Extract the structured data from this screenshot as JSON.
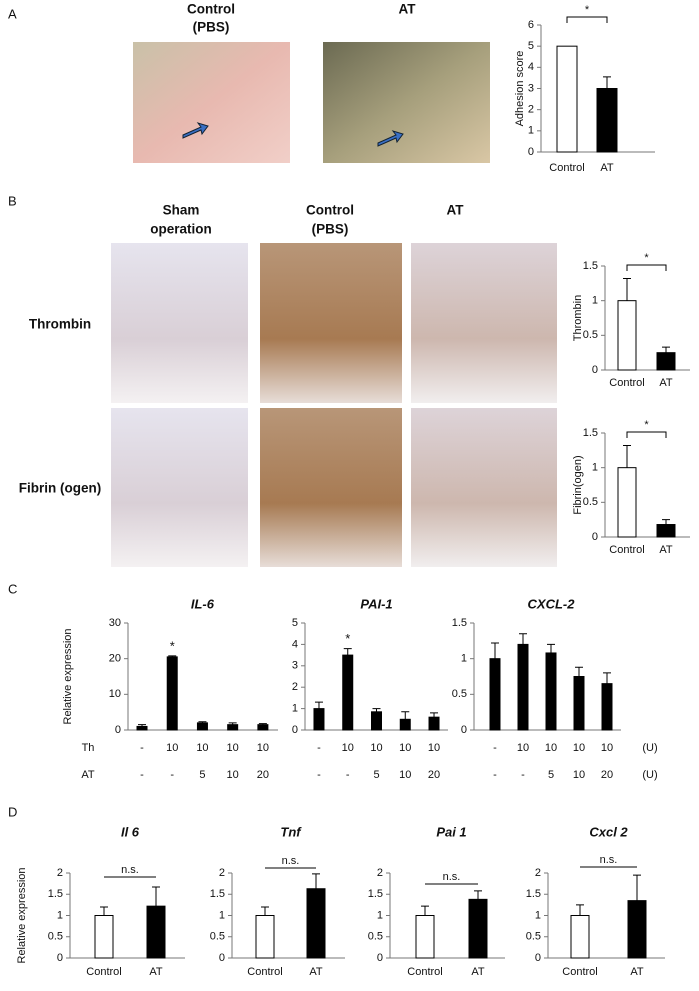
{
  "panels": [
    "A",
    "B",
    "C",
    "D"
  ],
  "a_images": {
    "headers": [
      [
        "Control",
        "(PBS)"
      ],
      [
        "AT"
      ]
    ]
  },
  "b_images": {
    "columns": [
      [
        "Sham",
        "operation"
      ],
      [
        "Control",
        "(PBS)"
      ],
      [
        "AT"
      ]
    ],
    "rows": [
      "Thrombin",
      "Fibrin (ogen)"
    ]
  },
  "conditions": {
    "rows": [
      {
        "name": "Th",
        "labels": [
          "-",
          "10",
          "10",
          "10",
          "10"
        ]
      },
      {
        "name": "AT",
        "labels": [
          "-",
          "-",
          "5",
          "10",
          "20"
        ]
      }
    ],
    "unit": "(U)"
  },
  "chart_data": [
    {
      "type": "bar",
      "ylabel": "Adhesion score",
      "categories": [
        "Control",
        "AT"
      ],
      "values": [
        5,
        3
      ],
      "errors": [
        null,
        0.55
      ],
      "colors": [
        "#ffffff",
        "#000000"
      ],
      "ylim": [
        0,
        6
      ],
      "yticks": [
        0,
        1,
        2,
        3,
        4,
        5,
        6
      ],
      "annotation": "*"
    },
    {
      "type": "bar",
      "ylabel": "Thrombin",
      "categories": [
        "Control",
        "AT"
      ],
      "values": [
        1,
        0.25
      ],
      "errors": [
        0.32,
        0.08
      ],
      "colors": [
        "#ffffff",
        "#000000"
      ],
      "ylim": [
        0,
        1.5
      ],
      "yticks": [
        0,
        0.5,
        1,
        1.5
      ],
      "annotation": "*"
    },
    {
      "type": "bar",
      "ylabel": "Fibrin(ogen)",
      "categories": [
        "Control",
        "AT"
      ],
      "values": [
        1,
        0.18
      ],
      "errors": [
        0.32,
        0.07
      ],
      "colors": [
        "#ffffff",
        "#000000"
      ],
      "ylim": [
        0,
        1.5
      ],
      "yticks": [
        0,
        0.5,
        1,
        1.5
      ],
      "annotation": "*"
    },
    {
      "type": "bar",
      "title": "IL-6",
      "ylabel": "Relative  expression",
      "values": [
        1,
        20.5,
        2,
        1.5,
        1.5
      ],
      "errors": [
        0.5,
        0.3,
        0.3,
        0.5,
        0.3
      ],
      "colors": [
        "#000000",
        "#000000",
        "#000000",
        "#000000",
        "#000000"
      ],
      "ylim": [
        0,
        30
      ],
      "yticks": [
        0,
        10,
        20,
        30
      ],
      "annotation": "*"
    },
    {
      "type": "bar",
      "title": "PAI-1",
      "values": [
        1,
        3.5,
        0.85,
        0.5,
        0.6
      ],
      "errors": [
        0.3,
        0.3,
        0.15,
        0.35,
        0.2
      ],
      "colors": [
        "#000000",
        "#000000",
        "#000000",
        "#000000",
        "#000000"
      ],
      "ylim": [
        0,
        5
      ],
      "yticks": [
        0,
        1,
        2,
        3,
        4,
        5
      ],
      "annotation": "*"
    },
    {
      "type": "bar",
      "title": "CXCL-2",
      "values": [
        1,
        1.2,
        1.08,
        0.75,
        0.65
      ],
      "errors": [
        0.22,
        0.15,
        0.12,
        0.13,
        0.15
      ],
      "colors": [
        "#000000",
        "#000000",
        "#000000",
        "#000000",
        "#000000"
      ],
      "ylim": [
        0,
        1.5
      ],
      "yticks": [
        0,
        0.5,
        1,
        1.5
      ]
    },
    {
      "type": "bar",
      "title": "Il 6",
      "ylabel": "Relative  expression",
      "categories": [
        "Control",
        "AT"
      ],
      "values": [
        1,
        1.22
      ],
      "errors": [
        0.2,
        0.45
      ],
      "colors": [
        "#ffffff",
        "#000000"
      ],
      "ylim": [
        0,
        2
      ],
      "yticks": [
        0,
        0.5,
        1,
        1.5,
        2
      ],
      "annotation": "n.s."
    },
    {
      "type": "bar",
      "title": "Tnf",
      "categories": [
        "Control",
        "AT"
      ],
      "values": [
        1,
        1.63
      ],
      "errors": [
        0.2,
        0.35
      ],
      "colors": [
        "#ffffff",
        "#000000"
      ],
      "ylim": [
        0,
        2
      ],
      "yticks": [
        0,
        0.5,
        1,
        1.5,
        2
      ],
      "annotation": "n.s."
    },
    {
      "type": "bar",
      "title": "Pai 1",
      "categories": [
        "Control",
        "AT"
      ],
      "values": [
        1,
        1.38
      ],
      "errors": [
        0.22,
        0.2
      ],
      "colors": [
        "#ffffff",
        "#000000"
      ],
      "ylim": [
        0,
        2
      ],
      "yticks": [
        0,
        0.5,
        1,
        1.5,
        2
      ],
      "annotation": "n.s."
    },
    {
      "type": "bar",
      "title": "Cxcl 2",
      "categories": [
        "Control",
        "AT"
      ],
      "values": [
        1,
        1.35
      ],
      "errors": [
        0.25,
        0.6
      ],
      "colors": [
        "#ffffff",
        "#000000"
      ],
      "ylim": [
        0,
        2
      ],
      "yticks": [
        0,
        0.5,
        1,
        1.5,
        2
      ],
      "annotation": "n.s."
    }
  ]
}
